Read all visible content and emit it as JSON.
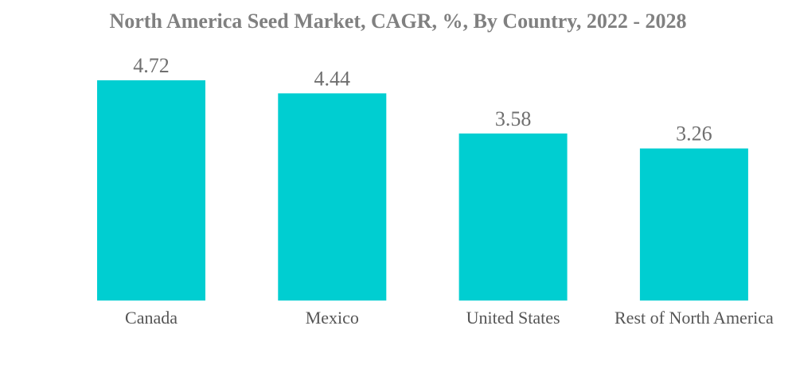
{
  "chart_data": {
    "type": "bar",
    "title": "North America Seed Market, CAGR, %, By Country, 2022 - 2028",
    "categories": [
      "Canada",
      "Mexico",
      "United States",
      "Rest of North America"
    ],
    "values": [
      4.72,
      4.44,
      3.58,
      3.26
    ],
    "value_labels": [
      "4.72",
      "4.44",
      "3.58",
      "3.26"
    ],
    "xlabel": "",
    "ylabel": "",
    "ylim": [
      0,
      4.72
    ],
    "grid": false,
    "legend": "none",
    "bar_color": "#00CED1"
  }
}
